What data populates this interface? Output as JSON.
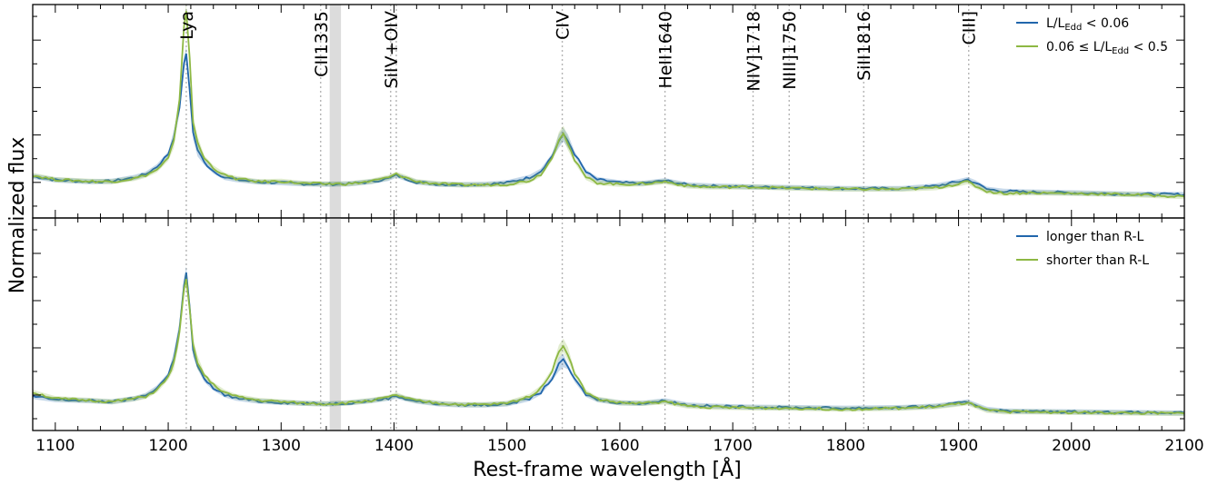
{
  "chart_data": {
    "type": "line",
    "xlabel": "Rest-frame wavelength [Å]",
    "ylabel": "Normalized flux",
    "xlim": [
      1080,
      2100
    ],
    "x_ticks": [
      1100,
      1200,
      1300,
      1400,
      1500,
      1600,
      1700,
      1800,
      1900,
      2000,
      2100
    ],
    "shaded_band": [
      1343,
      1353
    ],
    "emission_lines": [
      {
        "label": "Lya",
        "wavelength": 1216
      },
      {
        "label": "CII1335",
        "wavelength": 1335
      },
      {
        "label": "SiIV+OIV",
        "wavelength": 1397
      },
      {
        "label": "SiIV+OIV",
        "wavelength": 1402,
        "text": ""
      },
      {
        "label": "CIV",
        "wavelength": 1549
      },
      {
        "label": "HeII1640",
        "wavelength": 1640
      },
      {
        "label": "NIV]1718",
        "wavelength": 1718
      },
      {
        "label": "NIII]1750",
        "wavelength": 1750
      },
      {
        "label": "SiII1816",
        "wavelength": 1816
      },
      {
        "label": "CIII]",
        "wavelength": 1909
      }
    ],
    "panels": [
      {
        "name": "top",
        "ylim": [
          0,
          1.0
        ],
        "legend_location": "upper-right",
        "legend": [
          {
            "label_main": "L/L",
            "label_sub": "Edd",
            "label_rest": " < 0.06",
            "color": "#2166ac"
          },
          {
            "label_main": "0.06 ≤ L/L",
            "label_sub": "Edd",
            "label_rest": " < 0.5",
            "color": "#8db843"
          }
        ],
        "series": [
          {
            "color": "#2166ac",
            "x": [
              1080,
              1100,
              1130,
              1150,
              1170,
              1180,
              1190,
              1200,
              1205,
              1210,
              1214,
              1216,
              1219,
              1222,
              1226,
              1232,
              1240,
              1250,
              1260,
              1280,
              1300,
              1320,
              1340,
              1360,
              1380,
              1395,
              1402,
              1410,
              1420,
              1440,
              1460,
              1480,
              1500,
              1520,
              1530,
              1540,
              1546,
              1550,
              1554,
              1560,
              1570,
              1580,
              1600,
              1620,
              1640,
              1660,
              1680,
              1700,
              1720,
              1750,
              1800,
              1850,
              1880,
              1900,
              1908,
              1915,
              1925,
              1940,
              1960,
              2000,
              2050,
              2100
            ],
            "y": [
              0.195,
              0.178,
              0.17,
              0.172,
              0.19,
              0.205,
              0.24,
              0.3,
              0.38,
              0.52,
              0.72,
              0.77,
              0.6,
              0.4,
              0.32,
              0.26,
              0.22,
              0.19,
              0.18,
              0.168,
              0.165,
              0.16,
              0.158,
              0.16,
              0.17,
              0.185,
              0.2,
              0.185,
              0.168,
              0.158,
              0.156,
              0.158,
              0.165,
              0.19,
              0.22,
              0.29,
              0.36,
              0.39,
              0.36,
              0.3,
              0.215,
              0.18,
              0.165,
              0.162,
              0.175,
              0.155,
              0.15,
              0.148,
              0.145,
              0.143,
              0.138,
              0.138,
              0.15,
              0.17,
              0.18,
              0.165,
              0.135,
              0.125,
              0.122,
              0.118,
              0.112,
              0.11
            ]
          },
          {
            "color": "#8db843",
            "x": [
              1080,
              1100,
              1130,
              1150,
              1170,
              1180,
              1190,
              1200,
              1205,
              1210,
              1214,
              1216,
              1219,
              1222,
              1226,
              1232,
              1240,
              1250,
              1260,
              1280,
              1300,
              1320,
              1340,
              1360,
              1380,
              1395,
              1402,
              1410,
              1420,
              1440,
              1460,
              1480,
              1500,
              1520,
              1530,
              1540,
              1546,
              1550,
              1554,
              1560,
              1570,
              1580,
              1600,
              1620,
              1640,
              1660,
              1680,
              1700,
              1720,
              1750,
              1800,
              1850,
              1880,
              1900,
              1908,
              1915,
              1925,
              1940,
              1960,
              2000,
              2050,
              2100
            ],
            "y": [
              0.2,
              0.18,
              0.172,
              0.17,
              0.185,
              0.2,
              0.225,
              0.28,
              0.36,
              0.55,
              0.9,
              0.97,
              0.75,
              0.45,
              0.35,
              0.28,
              0.235,
              0.2,
              0.185,
              0.17,
              0.172,
              0.162,
              0.16,
              0.16,
              0.172,
              0.19,
              0.205,
              0.19,
              0.17,
              0.16,
              0.155,
              0.155,
              0.158,
              0.175,
              0.205,
              0.28,
              0.37,
              0.4,
              0.35,
              0.27,
              0.19,
              0.165,
              0.158,
              0.16,
              0.17,
              0.15,
              0.145,
              0.145,
              0.145,
              0.14,
              0.135,
              0.135,
              0.142,
              0.16,
              0.17,
              0.15,
              0.125,
              0.115,
              0.118,
              0.115,
              0.11,
              0.1
            ]
          }
        ]
      },
      {
        "name": "bottom",
        "ylim": [
          0,
          1.0
        ],
        "legend_location": "upper-right",
        "legend": [
          {
            "label_main": "longer than R-L",
            "label_sub": "",
            "label_rest": "",
            "color": "#2166ac"
          },
          {
            "label_main": "shorter than R-L",
            "label_sub": "",
            "label_rest": "",
            "color": "#8db843"
          }
        ],
        "series": [
          {
            "color": "#2166ac",
            "x": [
              1080,
              1100,
              1130,
              1150,
              1170,
              1180,
              1190,
              1200,
              1205,
              1210,
              1214,
              1216,
              1219,
              1222,
              1226,
              1232,
              1240,
              1250,
              1260,
              1280,
              1300,
              1320,
              1340,
              1360,
              1380,
              1395,
              1402,
              1410,
              1420,
              1440,
              1460,
              1480,
              1500,
              1520,
              1530,
              1540,
              1546,
              1550,
              1554,
              1560,
              1570,
              1580,
              1600,
              1620,
              1640,
              1660,
              1680,
              1700,
              1720,
              1750,
              1800,
              1850,
              1880,
              1900,
              1908,
              1915,
              1925,
              1940,
              1960,
              2000,
              2050,
              2100
            ],
            "y": [
              0.16,
              0.145,
              0.14,
              0.135,
              0.15,
              0.165,
              0.2,
              0.26,
              0.34,
              0.48,
              0.68,
              0.74,
              0.58,
              0.38,
              0.3,
              0.24,
              0.2,
              0.168,
              0.152,
              0.138,
              0.132,
              0.128,
              0.125,
              0.13,
              0.14,
              0.152,
              0.162,
              0.15,
              0.138,
              0.125,
              0.12,
              0.12,
              0.125,
              0.15,
              0.18,
              0.245,
              0.31,
              0.33,
              0.3,
              0.24,
              0.17,
              0.145,
              0.13,
              0.128,
              0.14,
              0.12,
              0.115,
              0.112,
              0.11,
              0.108,
              0.105,
              0.108,
              0.115,
              0.128,
              0.135,
              0.12,
              0.1,
              0.092,
              0.09,
              0.088,
              0.085,
              0.082
            ]
          },
          {
            "color": "#8db843",
            "x": [
              1080,
              1100,
              1130,
              1150,
              1170,
              1180,
              1190,
              1200,
              1205,
              1210,
              1214,
              1216,
              1219,
              1222,
              1226,
              1232,
              1240,
              1250,
              1260,
              1280,
              1300,
              1320,
              1340,
              1360,
              1380,
              1395,
              1402,
              1410,
              1420,
              1440,
              1460,
              1480,
              1500,
              1520,
              1530,
              1540,
              1546,
              1550,
              1554,
              1560,
              1570,
              1580,
              1600,
              1620,
              1640,
              1660,
              1680,
              1700,
              1720,
              1750,
              1800,
              1850,
              1880,
              1900,
              1908,
              1915,
              1925,
              1940,
              1960,
              2000,
              2050,
              2100
            ],
            "y": [
              0.18,
              0.15,
              0.142,
              0.135,
              0.15,
              0.16,
              0.19,
              0.25,
              0.32,
              0.46,
              0.66,
              0.71,
              0.57,
              0.4,
              0.32,
              0.26,
              0.215,
              0.18,
              0.16,
              0.142,
              0.135,
              0.128,
              0.125,
              0.13,
              0.142,
              0.155,
              0.168,
              0.152,
              0.14,
              0.128,
              0.122,
              0.122,
              0.128,
              0.16,
              0.2,
              0.28,
              0.37,
              0.4,
              0.36,
              0.27,
              0.18,
              0.148,
              0.13,
              0.128,
              0.135,
              0.115,
              0.11,
              0.108,
              0.106,
              0.105,
              0.1,
              0.105,
              0.112,
              0.125,
              0.13,
              0.115,
              0.095,
              0.088,
              0.088,
              0.085,
              0.082,
              0.08
            ]
          }
        ]
      }
    ]
  },
  "colors": {
    "blue": "#2166ac",
    "green": "#8db843",
    "marker_line": "#b4b4b4",
    "band": "#dcdcdc"
  }
}
